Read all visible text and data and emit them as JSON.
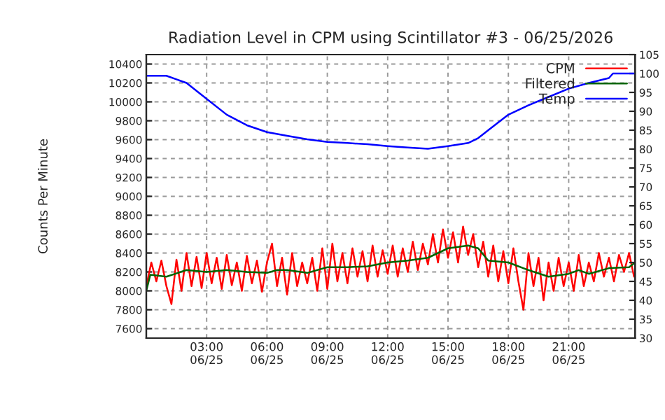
{
  "chart_data": {
    "type": "line",
    "title": "Radiation Level in CPM using Scintillator #3 - 06/25/2026",
    "ylabel": "Counts Per Minute",
    "xlim": [
      "2026-06-25T00:00",
      "2026-06-26T00:18"
    ],
    "ylim": [
      7500,
      10500
    ],
    "y2lim": [
      30,
      105
    ],
    "xticks": [
      {
        "value": "2026-06-25T03:00",
        "label": "03:00\n06/25"
      },
      {
        "value": "2026-06-25T06:00",
        "label": "06:00\n06/25"
      },
      {
        "value": "2026-06-25T09:00",
        "label": "09:00\n06/25"
      },
      {
        "value": "2026-06-25T12:00",
        "label": "12:00\n06/25"
      },
      {
        "value": "2026-06-25T15:00",
        "label": "15:00\n06/25"
      },
      {
        "value": "2026-06-25T18:00",
        "label": "18:00\n06/25"
      },
      {
        "value": "2026-06-25T21:00",
        "label": "21:00\n06/25"
      }
    ],
    "yticks": [
      7600,
      7800,
      8000,
      8200,
      8400,
      8600,
      8800,
      9000,
      9200,
      9400,
      9600,
      9800,
      10000,
      10200,
      10400
    ],
    "y2ticks": [
      30,
      35,
      40,
      45,
      50,
      55,
      60,
      65,
      70,
      75,
      80,
      85,
      90,
      95,
      100,
      105
    ],
    "grid": true,
    "legend": "top right",
    "line_style": "solid",
    "series": [
      {
        "name": "CPM",
        "color": "#ff0000",
        "x": [
          "2026-06-25T00:00",
          "2026-06-25T00:15",
          "2026-06-25T00:30",
          "2026-06-25T00:45",
          "2026-06-25T01:00",
          "2026-06-25T01:15",
          "2026-06-25T01:30",
          "2026-06-25T01:45",
          "2026-06-25T02:00",
          "2026-06-25T02:15",
          "2026-06-25T02:30",
          "2026-06-25T02:45",
          "2026-06-25T03:00",
          "2026-06-25T03:15",
          "2026-06-25T03:30",
          "2026-06-25T03:45",
          "2026-06-25T04:00",
          "2026-06-25T04:15",
          "2026-06-25T04:30",
          "2026-06-25T04:45",
          "2026-06-25T05:00",
          "2026-06-25T05:15",
          "2026-06-25T05:30",
          "2026-06-25T05:45",
          "2026-06-25T06:00",
          "2026-06-25T06:15",
          "2026-06-25T06:30",
          "2026-06-25T06:45",
          "2026-06-25T07:00",
          "2026-06-25T07:15",
          "2026-06-25T07:30",
          "2026-06-25T07:45",
          "2026-06-25T08:00",
          "2026-06-25T08:15",
          "2026-06-25T08:30",
          "2026-06-25T08:45",
          "2026-06-25T09:00",
          "2026-06-25T09:15",
          "2026-06-25T09:30",
          "2026-06-25T09:45",
          "2026-06-25T10:00",
          "2026-06-25T10:15",
          "2026-06-25T10:30",
          "2026-06-25T10:45",
          "2026-06-25T11:00",
          "2026-06-25T11:15",
          "2026-06-25T11:30",
          "2026-06-25T11:45",
          "2026-06-25T12:00",
          "2026-06-25T12:15",
          "2026-06-25T12:30",
          "2026-06-25T12:45",
          "2026-06-25T13:00",
          "2026-06-25T13:15",
          "2026-06-25T13:30",
          "2026-06-25T13:45",
          "2026-06-25T14:00",
          "2026-06-25T14:15",
          "2026-06-25T14:30",
          "2026-06-25T14:45",
          "2026-06-25T15:00",
          "2026-06-25T15:15",
          "2026-06-25T15:30",
          "2026-06-25T15:45",
          "2026-06-25T16:00",
          "2026-06-25T16:15",
          "2026-06-25T16:30",
          "2026-06-25T16:45",
          "2026-06-25T17:00",
          "2026-06-25T17:15",
          "2026-06-25T17:30",
          "2026-06-25T17:45",
          "2026-06-25T18:00",
          "2026-06-25T18:15",
          "2026-06-25T18:30",
          "2026-06-25T18:45",
          "2026-06-25T19:00",
          "2026-06-25T19:15",
          "2026-06-25T19:30",
          "2026-06-25T19:45",
          "2026-06-25T20:00",
          "2026-06-25T20:15",
          "2026-06-25T20:30",
          "2026-06-25T20:45",
          "2026-06-25T21:00",
          "2026-06-25T21:15",
          "2026-06-25T21:30",
          "2026-06-25T21:45",
          "2026-06-25T22:00",
          "2026-06-25T22:15",
          "2026-06-25T22:30",
          "2026-06-25T22:45",
          "2026-06-25T23:00",
          "2026-06-25T23:15",
          "2026-06-25T23:30",
          "2026-06-25T23:45",
          "2026-06-26T00:00",
          "2026-06-26T00:15"
        ],
        "values": [
          8050,
          8300,
          8100,
          8320,
          8050,
          7860,
          8330,
          8000,
          8400,
          8050,
          8360,
          8030,
          8400,
          8080,
          8350,
          8020,
          8380,
          8060,
          8300,
          8000,
          8370,
          8080,
          8320,
          7990,
          8300,
          8500,
          8050,
          8350,
          7960,
          8400,
          8050,
          8300,
          8080,
          8350,
          8000,
          8450,
          8020,
          8500,
          8100,
          8400,
          8080,
          8450,
          8150,
          8420,
          8100,
          8480,
          8150,
          8430,
          8180,
          8480,
          8150,
          8450,
          8200,
          8520,
          8220,
          8500,
          8280,
          8600,
          8300,
          8650,
          8350,
          8620,
          8300,
          8680,
          8380,
          8600,
          8250,
          8520,
          8150,
          8480,
          8100,
          8420,
          8080,
          8450,
          8100,
          7800,
          8400,
          8050,
          8350,
          7900,
          8300,
          8000,
          8350,
          8050,
          8300,
          8000,
          8380,
          8050,
          8300,
          8100,
          8400,
          8150,
          8350,
          8100,
          8380,
          8200,
          8400,
          8150
        ]
      },
      {
        "name": "Filtered",
        "color": "#006400",
        "x": [
          "2026-06-25T00:00",
          "2026-06-25T00:12",
          "2026-06-25T01:00",
          "2026-06-25T02:00",
          "2026-06-25T03:00",
          "2026-06-25T04:00",
          "2026-06-25T05:00",
          "2026-06-25T06:00",
          "2026-06-25T06:30",
          "2026-06-25T07:00",
          "2026-06-25T08:00",
          "2026-06-25T09:00",
          "2026-06-25T10:00",
          "2026-06-25T11:00",
          "2026-06-25T12:00",
          "2026-06-25T13:00",
          "2026-06-25T14:00",
          "2026-06-25T15:00",
          "2026-06-25T16:00",
          "2026-06-25T16:30",
          "2026-06-25T17:00",
          "2026-06-25T18:00",
          "2026-06-25T19:00",
          "2026-06-25T20:00",
          "2026-06-25T21:00",
          "2026-06-25T21:30",
          "2026-06-25T22:00",
          "2026-06-25T23:00",
          "2026-06-26T00:00",
          "2026-06-26T00:18"
        ],
        "values": [
          8000,
          8170,
          8150,
          8220,
          8200,
          8220,
          8200,
          8190,
          8220,
          8220,
          8190,
          8250,
          8250,
          8260,
          8300,
          8320,
          8350,
          8450,
          8480,
          8450,
          8320,
          8300,
          8220,
          8150,
          8180,
          8220,
          8180,
          8240,
          8250,
          8300
        ]
      },
      {
        "name": "Temp",
        "color": "#0000ff",
        "axis": "y2",
        "x": [
          "2026-06-25T00:00",
          "2026-06-25T01:00",
          "2026-06-25T02:00",
          "2026-06-25T03:00",
          "2026-06-25T04:00",
          "2026-06-25T05:00",
          "2026-06-25T06:00",
          "2026-06-25T07:00",
          "2026-06-25T08:00",
          "2026-06-25T09:00",
          "2026-06-25T10:00",
          "2026-06-25T11:00",
          "2026-06-25T12:00",
          "2026-06-25T13:00",
          "2026-06-25T14:00",
          "2026-06-25T15:00",
          "2026-06-25T16:00",
          "2026-06-25T16:30",
          "2026-06-25T17:00",
          "2026-06-25T18:00",
          "2026-06-25T19:00",
          "2026-06-25T20:00",
          "2026-06-25T21:00",
          "2026-06-25T22:00",
          "2026-06-25T23:00",
          "2026-06-25T23:12",
          "2026-06-26T00:18"
        ],
        "values": [
          99.4,
          99.4,
          97.5,
          93.3,
          89.1,
          86.3,
          84.5,
          83.5,
          82.6,
          81.9,
          81.6,
          81.3,
          80.8,
          80.4,
          80.1,
          80.8,
          81.6,
          82.9,
          85,
          89.1,
          91.6,
          93.8,
          96,
          97.5,
          98.8,
          100,
          100
        ]
      }
    ]
  }
}
